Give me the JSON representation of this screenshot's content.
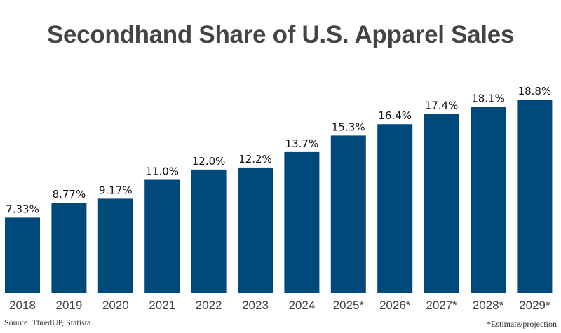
{
  "chart_data": {
    "type": "bar",
    "title": "Secondhand Share of U.S. Apparel Sales",
    "categories": [
      "2018",
      "2019",
      "2020",
      "2021",
      "2022",
      "2023",
      "2024",
      "2025*",
      "2026*",
      "2027*",
      "2028*",
      "2029*"
    ],
    "values": [
      7.33,
      8.77,
      9.17,
      11.0,
      12.0,
      12.2,
      13.7,
      15.3,
      16.4,
      17.4,
      18.1,
      18.8
    ],
    "data_labels": [
      "7.33%",
      "8.77%",
      "9.17%",
      "11.0%",
      "12.0%",
      "12.2%",
      "13.7%",
      "15.3%",
      "16.4%",
      "17.4%",
      "18.1%",
      "18.8%"
    ],
    "xlabel": "",
    "ylabel": "",
    "ylim": [
      0,
      18.8
    ],
    "grid": false,
    "bar_color": "#004a7b"
  },
  "footer": {
    "source": "Source: ThredUP, Statista",
    "note": "*Estimate/projection"
  }
}
